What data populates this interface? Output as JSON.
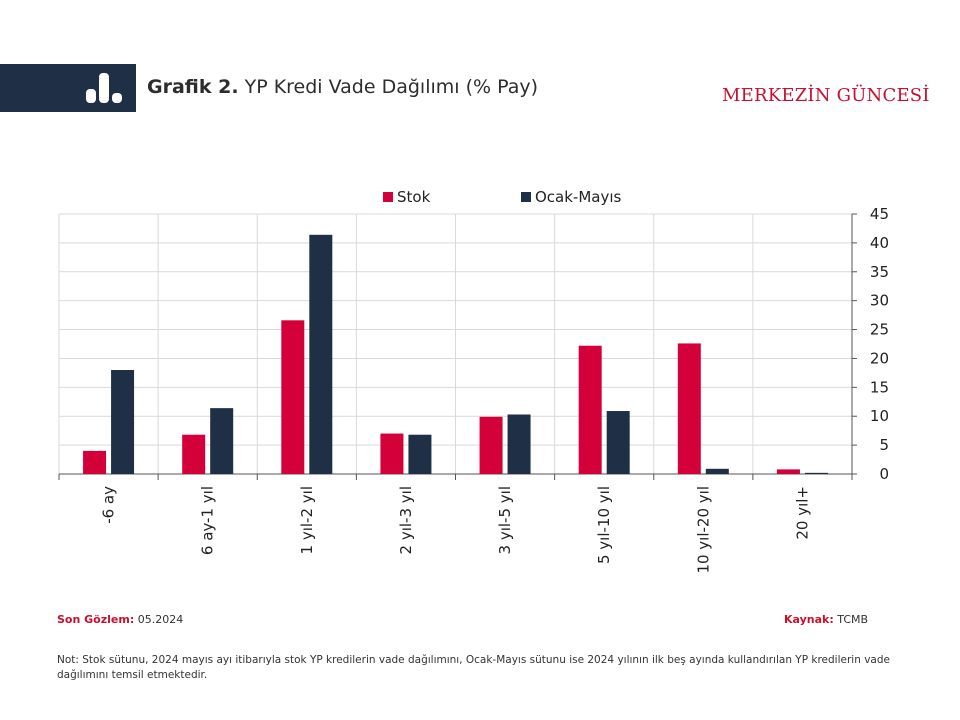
{
  "header": {
    "title_bold": "Grafik 2.",
    "title_rest": " YP Kredi Vade Dağılımı (% Pay)",
    "brand": "MERKEZİN GÜNCESİ",
    "icon": "bar-chart-icon"
  },
  "colors": {
    "stok": "#d4003a",
    "ocak": "#1f3046",
    "brand": "#c8102e"
  },
  "chart_data": {
    "type": "bar",
    "categories": [
      "-6 ay",
      "6 ay-1 yıl",
      "1 yıl-2 yıl",
      "2 yıl-3 yıl",
      "3 yıl-5 yıl",
      "5 yıl-10 yıl",
      "10 yıl-20 yıl",
      "20 yıl+"
    ],
    "series": [
      {
        "name": "Stok",
        "values": [
          4.0,
          6.8,
          26.6,
          7.0,
          9.9,
          22.2,
          22.6,
          0.8
        ]
      },
      {
        "name": "Ocak-Mayıs",
        "values": [
          18.0,
          11.4,
          41.4,
          6.8,
          10.3,
          10.9,
          0.9,
          0.2
        ]
      }
    ],
    "title": "YP Kredi Vade Dağılımı (% Pay)",
    "xlabel": "",
    "ylabel": "",
    "ylim": [
      0,
      45
    ],
    "yticks": [
      0,
      5,
      10,
      15,
      20,
      25,
      30,
      35,
      40,
      45
    ],
    "y_axis_side": "right",
    "grid": true,
    "legend_position": "top-center"
  },
  "footer": {
    "son_gozlem_label": "Son Gözlem:",
    "son_gozlem_value": " 05.2024",
    "kaynak_label": "Kaynak:",
    "kaynak_value": " TCMB",
    "note": "Not: Stok sütunu, 2024 mayıs ayı itibarıyla stok YP kredilerin vade dağılımını, Ocak-Mayıs sütunu ise 2024 yılının ilk beş ayında kullandırılan YP kredilerin vade dağılımını temsil etmektedir."
  }
}
